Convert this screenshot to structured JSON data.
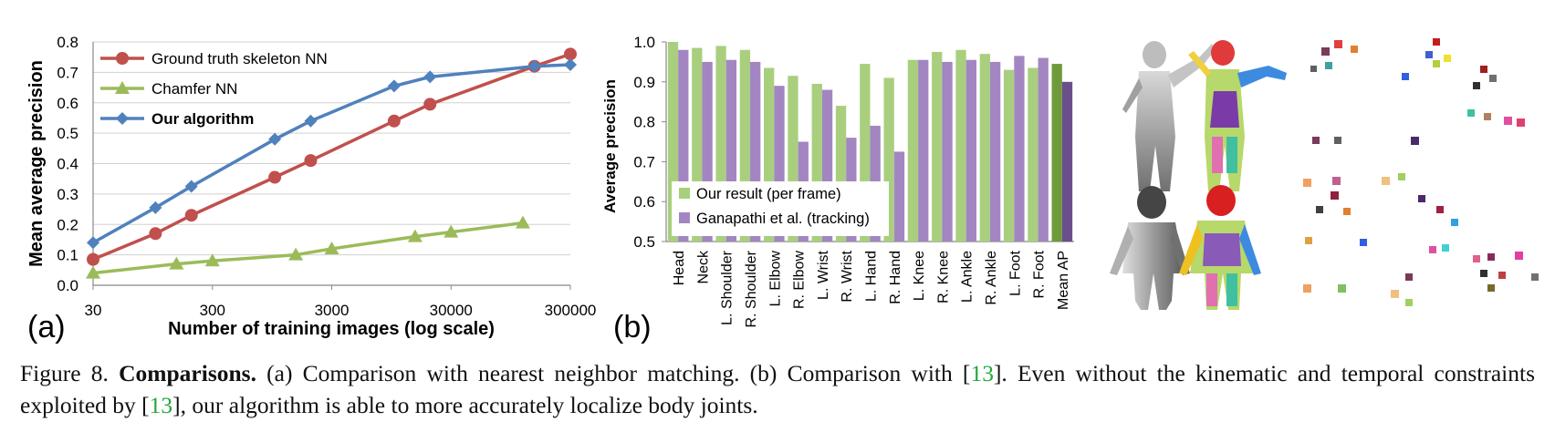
{
  "chart_data": [
    {
      "type": "line",
      "panel_label": "(a)",
      "xlabel": "Number of training images (log scale)",
      "ylabel": "Mean average precision",
      "x_scale": "log",
      "x_ticks": [
        "30",
        "300",
        "3000",
        "30000",
        "300000"
      ],
      "y_ticks": [
        "0.0",
        "0.1",
        "0.2",
        "0.3",
        "0.4",
        "0.5",
        "0.6",
        "0.7",
        "0.8"
      ],
      "xlim": [
        30,
        300000
      ],
      "ylim": [
        0,
        0.8
      ],
      "grid": true,
      "legend_position": "top-left",
      "series": [
        {
          "name": "Ground truth skeleton NN",
          "color": "#c0504d",
          "marker": "circle",
          "bold": false,
          "x": [
            30,
            100,
            200,
            1000,
            2000,
            10000,
            20000,
            150000,
            300000
          ],
          "y": [
            0.085,
            0.17,
            0.23,
            0.355,
            0.41,
            0.54,
            0.595,
            0.72,
            0.76
          ]
        },
        {
          "name": "Chamfer NN",
          "color": "#9bbb59",
          "marker": "triangle",
          "bold": false,
          "x": [
            30,
            150,
            300,
            1500,
            3000,
            15000,
            30000,
            120000
          ],
          "y": [
            0.04,
            0.07,
            0.08,
            0.1,
            0.12,
            0.16,
            0.175,
            0.205
          ]
        },
        {
          "name": "Our algorithm",
          "color": "#4f81bd",
          "marker": "diamond",
          "bold": true,
          "x": [
            30,
            100,
            200,
            1000,
            2000,
            10000,
            20000,
            150000,
            300000
          ],
          "y": [
            0.14,
            0.255,
            0.325,
            0.48,
            0.54,
            0.655,
            0.685,
            0.72,
            0.725
          ]
        }
      ]
    },
    {
      "type": "bar",
      "panel_label": "(b)",
      "ylabel": "Average precision",
      "ylim": [
        0.5,
        1.0
      ],
      "y_ticks": [
        "0.5",
        "0.6",
        "0.7",
        "0.8",
        "0.9",
        "1.0"
      ],
      "grid": false,
      "legend_position": "bottom-left",
      "categories": [
        "Head",
        "Neck",
        "L. Shoulder",
        "R. Shoulder",
        "L. Elbow",
        "R. Elbow",
        "L. Wrist",
        "R. Wrist",
        "L. Hand",
        "R. Hand",
        "L. Knee",
        "R. Knee",
        "L. Ankle",
        "R. Ankle",
        "L. Foot",
        "R. Foot",
        "Mean AP"
      ],
      "series": [
        {
          "name": "Our result (per frame)",
          "color": "#a9cf7e",
          "highlight_color": "#6f9a3c",
          "values": [
            1.0,
            0.985,
            0.99,
            0.98,
            0.935,
            0.915,
            0.895,
            0.84,
            0.945,
            0.91,
            0.955,
            0.975,
            0.98,
            0.97,
            0.93,
            0.935,
            0.945
          ]
        },
        {
          "name": "Ganapathi et al. (tracking)",
          "color": "#a386c1",
          "highlight_color": "#6a4f8c",
          "values": [
            0.98,
            0.95,
            0.955,
            0.95,
            0.89,
            0.75,
            0.88,
            0.76,
            0.79,
            0.725,
            0.955,
            0.95,
            0.955,
            0.95,
            0.965,
            0.96,
            0.9
          ]
        }
      ]
    }
  ],
  "figure": {
    "caption": {
      "prefix": "Figure 8. ",
      "bold": "Comparisons.",
      "part1": "  (a) Comparison with nearest neighbor matching.  (b) Comparison with [",
      "cite1": "13",
      "part2": "].  Even without the kinematic and temporal constraints exploited by [",
      "cite2": "13",
      "part3": "], our algorithm is able to more accurately localize body joints."
    }
  }
}
